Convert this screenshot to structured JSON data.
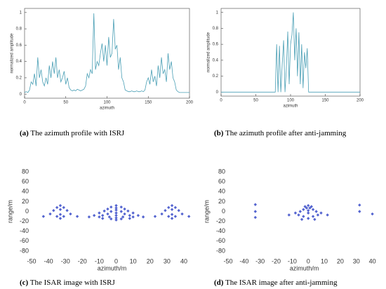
{
  "chart_data": [
    {
      "type": "line",
      "label": "(a)",
      "caption": "The azimuth profile with ISRJ",
      "xlabel": "azimuth",
      "ylabel": "normalized amplitude",
      "color": "#4a9fb5",
      "x": [
        0,
        2,
        4,
        6,
        8,
        10,
        12,
        14,
        16,
        18,
        20,
        22,
        24,
        26,
        28,
        30,
        32,
        34,
        36,
        38,
        40,
        42,
        44,
        46,
        48,
        50,
        52,
        54,
        56,
        58,
        60,
        62,
        64,
        66,
        68,
        70,
        72,
        74,
        76,
        78,
        80,
        82,
        84,
        86,
        88,
        90,
        92,
        94,
        96,
        98,
        100,
        102,
        104,
        106,
        108,
        110,
        112,
        114,
        116,
        118,
        120,
        122,
        124,
        126,
        128,
        130,
        132,
        134,
        136,
        138,
        140,
        142,
        144,
        146,
        148,
        150,
        152,
        154,
        156,
        158,
        160,
        162,
        164,
        166,
        168,
        170,
        172,
        174,
        176,
        178,
        180,
        182,
        184,
        186,
        188,
        190,
        192,
        194,
        196,
        198,
        200
      ],
      "values": [
        0.02,
        0.03,
        0.02,
        0.05,
        0.15,
        0.12,
        0.25,
        0.1,
        0.45,
        0.2,
        0.3,
        0.15,
        0.1,
        0.2,
        0.12,
        0.35,
        0.2,
        0.4,
        0.25,
        0.45,
        0.2,
        0.3,
        0.15,
        0.2,
        0.28,
        0.12,
        0.2,
        0.08,
        0.05,
        0.04,
        0.05,
        0.04,
        0.06,
        0.05,
        0.04,
        0.05,
        0.06,
        0.1,
        0.25,
        0.2,
        0.3,
        0.25,
        0.99,
        0.3,
        0.4,
        0.35,
        0.5,
        0.62,
        0.4,
        0.6,
        0.35,
        0.7,
        0.45,
        0.5,
        0.92,
        0.55,
        0.6,
        0.3,
        0.45,
        0.2,
        0.15,
        0.05,
        0.04,
        0.03,
        0.03,
        0.04,
        0.03,
        0.03,
        0.04,
        0.03,
        0.03,
        0.04,
        0.03,
        0.05,
        0.15,
        0.2,
        0.12,
        0.3,
        0.15,
        0.22,
        0.1,
        0.35,
        0.2,
        0.45,
        0.25,
        0.3,
        0.15,
        0.5,
        0.3,
        0.4,
        0.2,
        0.15,
        0.05,
        0.03,
        0.02,
        0.02,
        0.02,
        0.02,
        0.02,
        0.02,
        0.02
      ],
      "xlim": [
        0,
        200
      ],
      "xticks": [
        0,
        50,
        100,
        150,
        200
      ],
      "ylim": [
        -0.05,
        1.05
      ],
      "yticks": [
        0,
        0.2,
        0.4,
        0.6,
        0.8,
        1
      ]
    },
    {
      "type": "line",
      "label": "(b)",
      "caption": "The azimuth profile after anti-jamming",
      "xlabel": "azimuth",
      "ylabel": "normalized amplitude",
      "color": "#4a9fb5",
      "x": [
        0,
        2,
        4,
        6,
        8,
        10,
        12,
        14,
        16,
        18,
        20,
        22,
        24,
        26,
        28,
        30,
        32,
        34,
        36,
        38,
        40,
        42,
        44,
        46,
        48,
        50,
        52,
        54,
        56,
        58,
        60,
        62,
        64,
        66,
        68,
        70,
        72,
        74,
        76,
        78,
        80,
        82,
        84,
        86,
        88,
        90,
        92,
        94,
        96,
        98,
        100,
        102,
        104,
        106,
        108,
        110,
        112,
        114,
        116,
        118,
        120,
        122,
        124,
        126,
        128,
        130,
        132,
        134,
        136,
        138,
        140,
        142,
        144,
        146,
        148,
        150,
        152,
        154,
        156,
        158,
        160,
        162,
        164,
        166,
        168,
        170,
        172,
        174,
        176,
        178,
        180,
        182,
        184,
        186,
        188,
        190,
        192,
        194,
        196,
        198,
        200
      ],
      "values": [
        0,
        0,
        0,
        0,
        0,
        0,
        0,
        0,
        0,
        0,
        0,
        0,
        0,
        0,
        0,
        0,
        0,
        0,
        0,
        0,
        0,
        0,
        0,
        0,
        0,
        0,
        0,
        0,
        0,
        0,
        0,
        0,
        0,
        0,
        0,
        0,
        0,
        0,
        0,
        0,
        0.6,
        0,
        0.58,
        0,
        0.35,
        0.65,
        0,
        0.3,
        0.76,
        0.1,
        0.6,
        0.72,
        1,
        0.4,
        0.8,
        0.2,
        0.75,
        0.1,
        0.6,
        0.05,
        0.5,
        0.3,
        0.55,
        0,
        0,
        0,
        0,
        0,
        0,
        0,
        0,
        0,
        0,
        0,
        0,
        0,
        0,
        0,
        0,
        0,
        0,
        0,
        0,
        0,
        0,
        0,
        0,
        0,
        0,
        0,
        0,
        0,
        0,
        0,
        0,
        0,
        0,
        0,
        0,
        0,
        0
      ],
      "xlim": [
        0,
        200
      ],
      "xticks": [
        0,
        50,
        100,
        150,
        200
      ],
      "ylim": [
        -0.05,
        1.05
      ],
      "yticks": [
        0,
        0.2,
        0.4,
        0.6,
        0.8,
        1
      ]
    },
    {
      "type": "scatter",
      "label": "(c)",
      "caption": "The ISAR image with ISRJ",
      "xlabel": "azimuth/m",
      "ylabel": "range/m",
      "color": "#5565d0",
      "x": [
        -33,
        -35,
        -31,
        -33,
        -37,
        -29,
        -39,
        -27,
        -33,
        -43,
        -35,
        -31,
        -23,
        -33,
        33,
        35,
        31,
        33,
        37,
        29,
        39,
        27,
        33,
        43,
        35,
        31,
        23,
        33,
        0,
        -3,
        3,
        0,
        -5,
        5,
        0,
        -7,
        7,
        -3,
        3,
        -10,
        10,
        0,
        -5,
        5,
        -13,
        13,
        -8,
        8,
        0,
        -16,
        16,
        -10,
        -4,
        4,
        10,
        -3,
        3,
        0,
        -8,
        8,
        0
      ],
      "values": [
        12,
        8,
        8,
        4,
        2,
        2,
        -5,
        -5,
        -6,
        -10,
        -10,
        -10,
        -10,
        -14,
        12,
        8,
        8,
        4,
        2,
        2,
        -5,
        -5,
        -6,
        -10,
        -10,
        -10,
        -10,
        -14,
        12,
        9,
        9,
        7,
        5,
        5,
        3,
        1,
        1,
        0,
        0,
        -3,
        -3,
        -3,
        -5,
        -5,
        -8,
        -8,
        -8,
        -8,
        -8,
        -11,
        -11,
        -11,
        -11,
        -11,
        -11,
        -15,
        -15,
        -13,
        -14,
        -14,
        -17
      ],
      "xlim": [
        -50,
        45
      ],
      "xticks": [
        -50,
        -40,
        -30,
        -20,
        -10,
        0,
        10,
        20,
        30,
        40
      ],
      "ylim": [
        -90,
        90
      ],
      "yticks": [
        -80,
        -60,
        -40,
        -20,
        0,
        20,
        40,
        60,
        80
      ]
    },
    {
      "type": "scatter",
      "label": "(d)",
      "caption": "The ISAR image after anti-jamming",
      "xlabel": "azimuth/m",
      "ylabel": "range/m",
      "color": "#5565d0",
      "x": [
        -33,
        -33,
        -33,
        32,
        32,
        40,
        0,
        -2,
        2,
        -1,
        1,
        -3,
        3,
        0,
        -5,
        5,
        -8,
        8,
        0,
        -12,
        -6,
        6,
        12,
        -3,
        3,
        0,
        -4,
        4
      ],
      "values": [
        14,
        0,
        -12,
        13,
        0,
        -5,
        12,
        10,
        10,
        7,
        7,
        4,
        4,
        2,
        0,
        0,
        -3,
        -3,
        -3,
        -7,
        -7,
        -7,
        -7,
        -10,
        -10,
        -14,
        -16,
        -16
      ],
      "xlim": [
        -50,
        45
      ],
      "xticks": [
        -50,
        -40,
        -30,
        -20,
        -10,
        0,
        10,
        20,
        30,
        40
      ],
      "ylim": [
        -90,
        90
      ],
      "yticks": [
        -80,
        -60,
        -40,
        -20,
        0,
        20,
        40,
        60,
        80
      ]
    }
  ]
}
